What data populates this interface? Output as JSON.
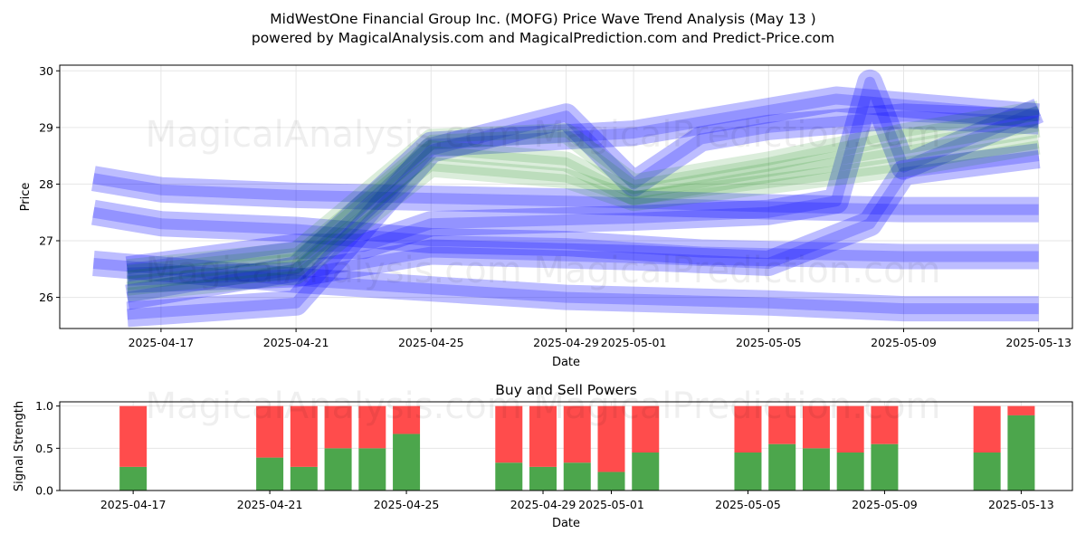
{
  "title_line1": "MidWestOne Financial Group Inc. (MOFG) Price Wave Trend Analysis (May 13 )",
  "title_line2": "powered by MagicalAnalysis.com and MagicalPrediction.com and Predict-Price.com",
  "watermark": "MagicalAnalysis.com    MagicalPrediction.com",
  "colors": {
    "blue": "#0000ff",
    "green": "#008000",
    "buy": "#4ca64c",
    "sell": "#ff4c4c"
  },
  "chart_data": [
    {
      "type": "line",
      "title": "",
      "xlabel": "Date",
      "ylabel": "Price",
      "ylim": [
        25.45,
        30.1
      ],
      "yticks": [
        26,
        27,
        28,
        29,
        30
      ],
      "xlim": [
        "2025-04-14",
        "2025-05-14"
      ],
      "xticks": [
        "2025-04-17",
        "2025-04-21",
        "2025-04-25",
        "2025-04-29",
        "2025-05-01",
        "2025-05-05",
        "2025-05-09",
        "2025-05-13"
      ],
      "grid": true,
      "series": [
        {
          "color": "blue",
          "x": [
            "2025-04-15",
            "2025-04-17",
            "2025-04-21",
            "2025-04-25",
            "2025-04-29",
            "2025-05-03",
            "2025-05-09",
            "2025-05-13"
          ],
          "y": [
            27.5,
            27.3,
            27.2,
            27.0,
            26.95,
            26.8,
            26.72,
            26.72
          ]
        },
        {
          "color": "blue",
          "x": [
            "2025-04-15",
            "2025-04-17",
            "2025-04-21",
            "2025-04-25",
            "2025-04-29",
            "2025-05-05",
            "2025-05-09",
            "2025-05-13"
          ],
          "y": [
            28.1,
            27.9,
            27.8,
            27.75,
            27.7,
            27.6,
            27.55,
            27.55
          ]
        },
        {
          "color": "blue",
          "x": [
            "2025-04-15",
            "2025-04-17",
            "2025-04-21",
            "2025-04-25",
            "2025-04-29",
            "2025-05-05",
            "2025-05-09",
            "2025-05-13"
          ],
          "y": [
            26.6,
            26.5,
            26.3,
            26.15,
            26.0,
            25.9,
            25.8,
            25.8
          ]
        },
        {
          "color": "blue",
          "x": [
            "2025-04-16",
            "2025-04-21",
            "2025-04-23",
            "2025-04-25",
            "2025-05-01",
            "2025-05-05",
            "2025-05-07",
            "2025-05-08",
            "2025-05-09",
            "2025-05-13"
          ],
          "y": [
            26.5,
            26.9,
            26.9,
            27.3,
            27.4,
            27.5,
            27.7,
            29.8,
            28.3,
            29.3
          ]
        },
        {
          "color": "blue",
          "x": [
            "2025-04-16",
            "2025-04-21",
            "2025-04-25",
            "2025-05-01",
            "2025-05-05",
            "2025-05-08",
            "2025-05-09",
            "2025-05-13"
          ],
          "y": [
            26.3,
            26.4,
            26.8,
            26.7,
            26.6,
            27.3,
            28.2,
            28.5
          ]
        },
        {
          "color": "blue",
          "x": [
            "2025-04-16",
            "2025-04-21",
            "2025-04-25",
            "2025-04-29",
            "2025-05-01",
            "2025-05-03",
            "2025-05-05",
            "2025-05-09",
            "2025-05-13"
          ],
          "y": [
            25.7,
            25.9,
            28.6,
            29.2,
            28.0,
            28.8,
            29.0,
            29.2,
            29.1
          ]
        },
        {
          "color": "blue",
          "x": [
            "2025-04-16",
            "2025-04-21",
            "2025-04-25",
            "2025-05-01",
            "2025-05-05",
            "2025-05-07",
            "2025-05-09",
            "2025-05-13"
          ],
          "y": [
            26.0,
            26.5,
            28.7,
            28.9,
            29.3,
            29.5,
            29.4,
            29.2
          ]
        },
        {
          "color": "green",
          "x": [
            "2025-04-16",
            "2025-04-21",
            "2025-04-25",
            "2025-04-29",
            "2025-05-01",
            "2025-05-05",
            "2025-05-09",
            "2025-05-13"
          ],
          "y": [
            26.3,
            26.6,
            28.6,
            28.4,
            27.8,
            28.2,
            28.6,
            29.0
          ]
        },
        {
          "color": "green",
          "x": [
            "2025-04-16",
            "2025-04-21",
            "2025-04-25",
            "2025-04-29",
            "2025-05-01",
            "2025-05-05",
            "2025-05-09",
            "2025-05-13"
          ],
          "y": [
            26.5,
            26.8,
            28.8,
            28.9,
            28.0,
            28.4,
            28.9,
            29.3
          ]
        },
        {
          "color": "green",
          "x": [
            "2025-04-16",
            "2025-04-21",
            "2025-04-25",
            "2025-04-29",
            "2025-05-01",
            "2025-05-05",
            "2025-05-09",
            "2025-05-13"
          ],
          "y": [
            26.1,
            26.4,
            28.3,
            28.1,
            27.7,
            28.0,
            28.3,
            28.7
          ]
        }
      ]
    },
    {
      "type": "bar",
      "title": "Buy and Sell Powers",
      "xlabel": "Date",
      "ylabel": "Signal Strength",
      "ylim": [
        0,
        1.05
      ],
      "yticks": [
        "0.0",
        "0.5",
        "1.0"
      ],
      "xticks": [
        "2025-04-17",
        "2025-04-21",
        "2025-04-25",
        "2025-04-29",
        "2025-05-01",
        "2025-05-05",
        "2025-05-09",
        "2025-05-13"
      ],
      "grid": true,
      "stacked": true,
      "categories": [
        "2025-04-17",
        "2025-04-21",
        "2025-04-22",
        "2025-04-23",
        "2025-04-24",
        "2025-04-25",
        "2025-04-28",
        "2025-04-29",
        "2025-04-30",
        "2025-05-01",
        "2025-05-02",
        "2025-05-05",
        "2025-05-06",
        "2025-05-07",
        "2025-05-08",
        "2025-05-09",
        "2025-05-12",
        "2025-05-13"
      ],
      "series": [
        {
          "color": "buy",
          "values": [
            0.28,
            0.39,
            0.28,
            0.5,
            0.5,
            0.67,
            0.33,
            0.28,
            0.33,
            0.22,
            0.45,
            0.45,
            0.55,
            0.5,
            0.45,
            0.55,
            0.45,
            0.89
          ]
        },
        {
          "color": "sell",
          "values": [
            0.72,
            0.61,
            0.72,
            0.5,
            0.5,
            0.33,
            0.67,
            0.72,
            0.67,
            0.78,
            0.55,
            0.55,
            0.45,
            0.5,
            0.55,
            0.45,
            0.55,
            0.11
          ]
        }
      ]
    }
  ]
}
